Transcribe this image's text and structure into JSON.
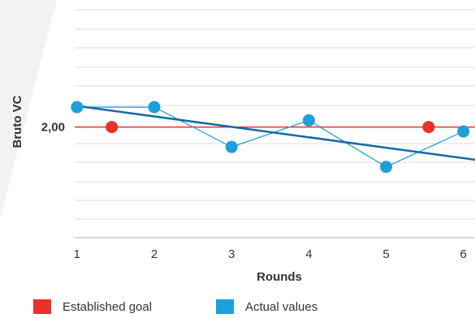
{
  "chart_data": {
    "type": "line",
    "ylabel": "Bruto VC",
    "xlabel": "Rounds",
    "x_ticks": [
      "1",
      "2",
      "3",
      "4",
      "5",
      "6"
    ],
    "y_tick_labels": [
      "2,00"
    ],
    "y_tick_values": [
      2.0
    ],
    "ylim": [
      1.5,
      2.53
    ],
    "xlim": [
      0.97,
      6.15
    ],
    "grid": true,
    "legend_position": "bottom",
    "series": [
      {
        "name": "Established goal",
        "kind": "points",
        "color": "#e8312a",
        "x": [
          1.45,
          5.55
        ],
        "y": [
          2.0,
          2.0
        ]
      },
      {
        "name": "Actual values",
        "kind": "line-with-points",
        "color": "#1e9fdc",
        "x": [
          1,
          2,
          3,
          4,
          5,
          6
        ],
        "y": [
          2.09,
          2.09,
          1.91,
          2.03,
          1.82,
          1.98
        ]
      }
    ],
    "reference_line": {
      "y": 2.0,
      "color": "#e8312a"
    },
    "trendline": {
      "color": "#1668a8",
      "x": [
        1,
        6.2
      ],
      "y": [
        2.095,
        1.85
      ]
    }
  },
  "colors": {
    "background_wedge": "#f2f2f4",
    "grid": "#dcdcdc",
    "axis": "#b0b0b0",
    "trend": "#1668a8"
  }
}
